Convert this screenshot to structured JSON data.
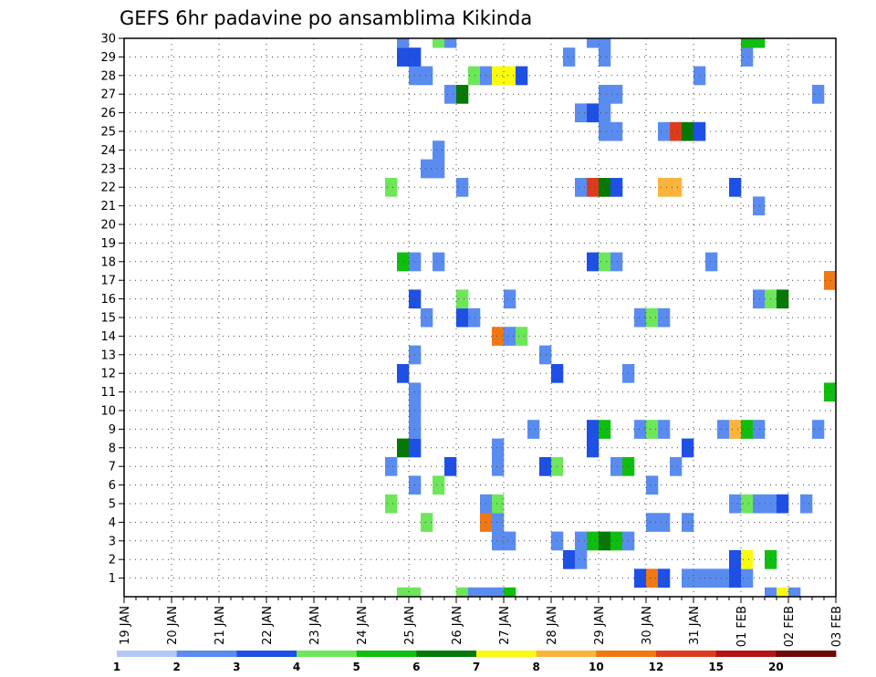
{
  "chart_data": {
    "type": "heatmap",
    "title": "GEFS 6hr padavine po ansamblima Kikinda",
    "x_tick_labels": [
      "19 JAN",
      "20 JAN",
      "21 JAN",
      "22 JAN",
      "23 JAN",
      "24 JAN",
      "25 JAN",
      "26 JAN",
      "27 JAN",
      "28 JAN",
      "29 JAN",
      "30 JAN",
      "31 JAN",
      "01 FEB",
      "02 FEB",
      "03 FEB"
    ],
    "y_tick_labels": [
      "1",
      "2",
      "3",
      "4",
      "5",
      "6",
      "7",
      "8",
      "9",
      "10",
      "11",
      "12",
      "13",
      "14",
      "15",
      "16",
      "17",
      "18",
      "19",
      "20",
      "21",
      "22",
      "23",
      "24",
      "25",
      "26",
      "27",
      "28",
      "29",
      "30"
    ],
    "y_range": [
      0,
      30
    ],
    "grid": true,
    "colorbar": {
      "colors": [
        "#b4c8f8",
        "#5a8cf0",
        "#1e50e6",
        "#6ee65a",
        "#10be10",
        "#067806",
        "#fafa10",
        "#fab43c",
        "#f07814",
        "#dc3c1e",
        "#b41414",
        "#6e0a0a"
      ],
      "labels": [
        "1",
        "2",
        "3",
        "4",
        "5",
        "6",
        "7",
        "8",
        "10",
        "12",
        "15",
        "20"
      ]
    },
    "cells": [
      [
        24.75,
        0,
        3
      ],
      [
        25.0,
        0,
        3
      ],
      [
        26.0,
        0,
        3
      ],
      [
        26.25,
        0,
        1
      ],
      [
        26.5,
        0,
        1
      ],
      [
        26.75,
        0,
        1
      ],
      [
        27.0,
        0,
        4
      ],
      [
        32.5,
        0,
        1
      ],
      [
        32.75,
        0,
        6
      ],
      [
        33.0,
        0,
        1
      ],
      [
        29.75,
        1,
        2
      ],
      [
        30.0,
        1,
        8
      ],
      [
        30.25,
        1,
        2
      ],
      [
        30.75,
        1,
        1
      ],
      [
        31.0,
        1,
        1
      ],
      [
        31.25,
        1,
        1
      ],
      [
        31.5,
        1,
        1
      ],
      [
        31.75,
        1,
        2
      ],
      [
        32.0,
        1,
        1
      ],
      [
        28.25,
        2,
        2
      ],
      [
        28.5,
        2,
        1
      ],
      [
        31.75,
        2,
        2
      ],
      [
        32.0,
        2,
        6
      ],
      [
        32.5,
        2,
        4
      ],
      [
        26.75,
        3,
        1
      ],
      [
        27.0,
        3,
        1
      ],
      [
        28.0,
        3,
        1
      ],
      [
        28.5,
        3,
        1
      ],
      [
        28.75,
        3,
        4
      ],
      [
        29.0,
        3,
        5
      ],
      [
        29.25,
        3,
        4
      ],
      [
        29.5,
        3,
        1
      ],
      [
        25.25,
        4,
        3
      ],
      [
        26.5,
        4,
        8
      ],
      [
        26.75,
        4,
        1
      ],
      [
        30.0,
        4,
        1
      ],
      [
        30.25,
        4,
        1
      ],
      [
        30.75,
        4,
        1
      ],
      [
        24.5,
        5,
        3
      ],
      [
        26.5,
        5,
        1
      ],
      [
        26.75,
        5,
        3
      ],
      [
        31.75,
        5,
        1
      ],
      [
        32.0,
        5,
        3
      ],
      [
        32.25,
        5,
        1
      ],
      [
        32.5,
        5,
        1
      ],
      [
        32.75,
        5,
        2
      ],
      [
        33.25,
        5,
        1
      ],
      [
        25.0,
        6,
        1
      ],
      [
        25.5,
        6,
        3
      ],
      [
        30.0,
        6,
        1
      ],
      [
        24.5,
        7,
        1
      ],
      [
        25.75,
        7,
        2
      ],
      [
        26.75,
        7,
        1
      ],
      [
        27.75,
        7,
        2
      ],
      [
        28.0,
        7,
        3
      ],
      [
        29.25,
        7,
        1
      ],
      [
        29.5,
        7,
        4
      ],
      [
        30.5,
        7,
        1
      ],
      [
        24.75,
        8,
        5
      ],
      [
        25.0,
        8,
        2
      ],
      [
        26.75,
        8,
        1
      ],
      [
        28.75,
        8,
        2
      ],
      [
        30.75,
        8,
        2
      ],
      [
        25.0,
        9,
        1
      ],
      [
        27.5,
        9,
        1
      ],
      [
        28.75,
        9,
        2
      ],
      [
        29.0,
        9,
        4
      ],
      [
        29.75,
        9,
        1
      ],
      [
        30.0,
        9,
        3
      ],
      [
        30.25,
        9,
        1
      ],
      [
        31.5,
        9,
        1
      ],
      [
        31.75,
        9,
        7
      ],
      [
        32.0,
        9,
        4
      ],
      [
        32.25,
        9,
        1
      ],
      [
        33.5,
        9,
        1
      ],
      [
        25.0,
        10,
        1
      ],
      [
        25.0,
        11,
        1
      ],
      [
        33.75,
        11,
        4
      ],
      [
        24.75,
        12,
        2
      ],
      [
        28.0,
        12,
        2
      ],
      [
        29.5,
        12,
        1
      ],
      [
        25.0,
        13,
        1
      ],
      [
        27.75,
        13,
        1
      ],
      [
        26.75,
        14,
        8
      ],
      [
        27.0,
        14,
        1
      ],
      [
        27.25,
        14,
        3
      ],
      [
        25.25,
        15,
        1
      ],
      [
        26.0,
        15,
        2
      ],
      [
        26.25,
        15,
        1
      ],
      [
        29.75,
        15,
        1
      ],
      [
        30.0,
        15,
        3
      ],
      [
        30.25,
        15,
        1
      ],
      [
        25.0,
        16,
        2
      ],
      [
        26.0,
        16,
        3
      ],
      [
        27.0,
        16,
        1
      ],
      [
        32.25,
        16,
        1
      ],
      [
        32.5,
        16,
        3
      ],
      [
        32.75,
        16,
        5
      ],
      [
        33.75,
        17,
        8
      ],
      [
        24.75,
        18,
        4
      ],
      [
        25.0,
        18,
        1
      ],
      [
        25.5,
        18,
        1
      ],
      [
        28.75,
        18,
        2
      ],
      [
        29.0,
        18,
        3
      ],
      [
        29.25,
        18,
        1
      ],
      [
        31.25,
        18,
        1
      ],
      [
        32.25,
        21,
        1
      ],
      [
        24.5,
        22,
        3
      ],
      [
        26.0,
        22,
        1
      ],
      [
        28.5,
        22,
        1
      ],
      [
        28.75,
        22,
        9
      ],
      [
        29.0,
        22,
        5
      ],
      [
        29.25,
        22,
        2
      ],
      [
        30.25,
        22,
        7
      ],
      [
        30.5,
        22,
        7
      ],
      [
        31.75,
        22,
        2
      ],
      [
        25.25,
        23,
        1
      ],
      [
        25.5,
        23,
        1
      ],
      [
        25.5,
        24,
        1
      ],
      [
        29.0,
        25,
        1
      ],
      [
        29.25,
        25,
        1
      ],
      [
        30.25,
        25,
        1
      ],
      [
        30.5,
        25,
        9
      ],
      [
        30.75,
        25,
        5
      ],
      [
        31.0,
        25,
        2
      ],
      [
        28.5,
        26,
        1
      ],
      [
        28.75,
        26,
        2
      ],
      [
        29.0,
        26,
        1
      ],
      [
        25.75,
        27,
        1
      ],
      [
        26.0,
        27,
        5
      ],
      [
        29.0,
        27,
        1
      ],
      [
        29.25,
        27,
        1
      ],
      [
        33.5,
        27,
        1
      ],
      [
        25.0,
        28,
        1
      ],
      [
        25.25,
        28,
        1
      ],
      [
        26.25,
        28,
        3
      ],
      [
        26.5,
        28,
        1
      ],
      [
        26.75,
        28,
        6
      ],
      [
        27.0,
        28,
        6
      ],
      [
        27.25,
        28,
        2
      ],
      [
        31.0,
        28,
        1
      ],
      [
        24.75,
        29,
        2
      ],
      [
        25.0,
        29,
        2
      ],
      [
        28.25,
        29,
        1
      ],
      [
        29.0,
        29,
        1
      ],
      [
        32.0,
        29,
        1
      ],
      [
        24.75,
        30,
        1
      ],
      [
        25.5,
        30,
        3
      ],
      [
        25.75,
        30,
        1
      ],
      [
        28.75,
        30,
        1
      ],
      [
        29.0,
        30,
        1
      ],
      [
        32.0,
        30,
        4
      ],
      [
        32.25,
        30,
        4
      ]
    ]
  }
}
